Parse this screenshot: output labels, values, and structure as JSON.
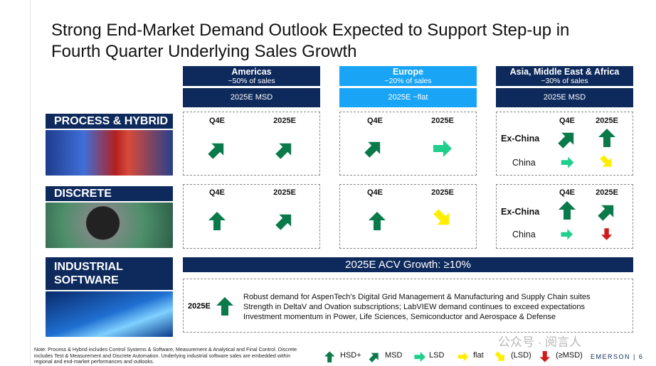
{
  "title": "Strong End-Market Demand Outlook Expected to Support Step-up in Fourth Quarter Underlying Sales Growth",
  "regions": [
    {
      "name": "Americas",
      "share": "~50% of sales",
      "outlook": "2025E MSD"
    },
    {
      "name": "Europe",
      "share": "~20% of sales",
      "outlook": "2025E ~flat"
    },
    {
      "name": "Asia, Middle East & Africa",
      "share": "~30% of sales",
      "outlook": "2025E MSD"
    }
  ],
  "segments": [
    "PROCESS & HYBRID",
    "DISCRETE",
    "INDUSTRIAL SOFTWARE"
  ],
  "column_headers": [
    "Q4E",
    "2025E"
  ],
  "row_labels": [
    "Ex-China",
    "China"
  ],
  "software": {
    "acv": "2025E ACV Growth: ≥10%",
    "label": "2025E",
    "points": [
      "Robust demand for AspenTech's Digital Grid Management & Manufacturing and Supply Chain suites",
      "Strength in DeltaV and Ovation subscriptions; LabVIEW demand continues to exceed expectations",
      "Investment momentum in Power, Life Sciences, Semiconductor and Aerospace & Defense"
    ]
  },
  "footnote": "Note: Process & Hybrid includes Control Systems & Software, Measurement & Analytical and Final Control. Discrete includes Test & Measurement and Discrete Automation. Underlying industrial software sales are embedded within regional and end-market performances and outlooks.",
  "legend": [
    "HSD+",
    "MSD",
    "LSD",
    "flat",
    "(LSD)",
    "(≥MSD)"
  ],
  "brand": "EMERSON | 6",
  "watermark": "公众号 · 阅言人"
}
